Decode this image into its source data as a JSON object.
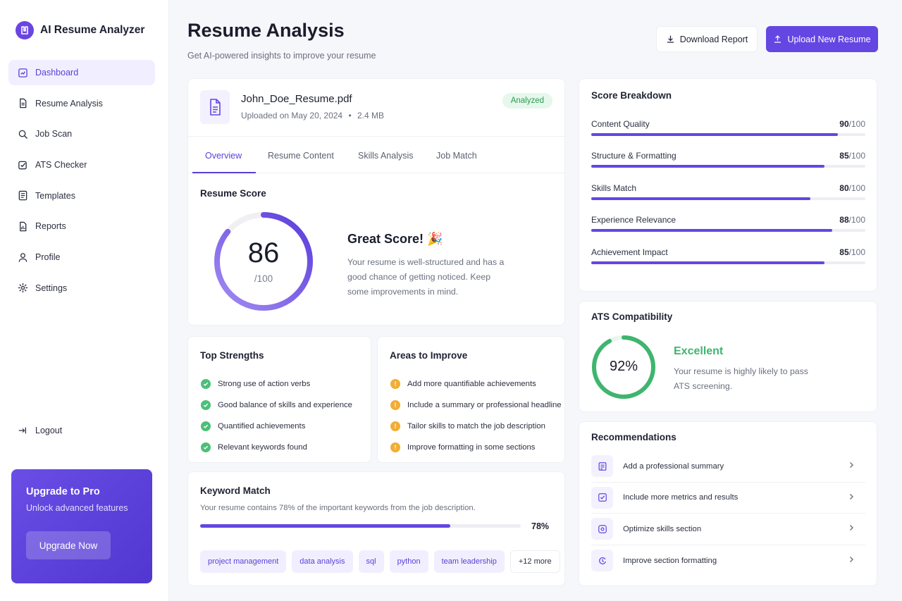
{
  "app": {
    "name": "AI Resume Analyzer"
  },
  "sidebar": {
    "items": [
      {
        "label": "Dashboard",
        "icon": "dashboard-icon"
      },
      {
        "label": "Resume Analysis",
        "icon": "document-icon"
      },
      {
        "label": "Job Scan",
        "icon": "search-icon"
      },
      {
        "label": "ATS Checker",
        "icon": "checklist-icon"
      },
      {
        "label": "Templates",
        "icon": "template-icon"
      },
      {
        "label": "Reports",
        "icon": "report-icon"
      },
      {
        "label": "Profile",
        "icon": "user-icon"
      },
      {
        "label": "Settings",
        "icon": "gear-icon"
      }
    ],
    "logout_label": "Logout",
    "upgrade": {
      "title": "Upgrade to Pro",
      "subtitle": "Unlock advanced features",
      "button": "Upgrade Now"
    }
  },
  "header": {
    "title": "Resume Analysis",
    "subtitle": "Get AI-powered insights to improve your resume",
    "download_label": "Download Report",
    "upload_label": "Upload New Resume"
  },
  "file": {
    "name": "John_Doe_Resume.pdf",
    "uploaded": "Uploaded on May 20, 2024",
    "separator": "•",
    "size": "2.4 MB",
    "status": "Analyzed"
  },
  "tabs": [
    "Overview",
    "Resume Content",
    "Skills Analysis",
    "Job Match"
  ],
  "score": {
    "label": "Resume Score",
    "value": "86",
    "max": "/100",
    "fraction": 0.86,
    "headline": "Great Score! 🎉",
    "description": "Your resume is well-structured and has a good chance of getting noticed. Keep some improvements in mind."
  },
  "strengths": {
    "title": "Top Strengths",
    "items": [
      "Strong use of action verbs",
      "Good balance of skills and experience",
      "Quantified achievements",
      "Relevant keywords found"
    ]
  },
  "improve": {
    "title": "Areas to Improve",
    "items": [
      "Add more quantifiable achievements",
      "Include a summary or professional headline",
      "Tailor skills to match the job description",
      "Improve formatting in some sections"
    ]
  },
  "keyword": {
    "title": "Keyword Match",
    "subtitle": "Your resume contains 78% of the important keywords from the job description.",
    "percent": "78%",
    "fraction": 0.78,
    "chips": [
      "project management",
      "data analysis",
      "sql",
      "python",
      "team leadership"
    ],
    "more": "+12 more"
  },
  "breakdown": {
    "title": "Score Breakdown",
    "rows": [
      {
        "name": "Content Quality",
        "score": "90",
        "max": "/100",
        "fraction": 0.9
      },
      {
        "name": "Structure & Formatting",
        "score": "85",
        "max": "/100",
        "fraction": 0.85
      },
      {
        "name": "Skills Match",
        "score": "80",
        "max": "/100",
        "fraction": 0.8
      },
      {
        "name": "Experience Relevance",
        "score": "88",
        "max": "/100",
        "fraction": 0.88
      },
      {
        "name": "Achievement Impact",
        "score": "85",
        "max": "/100",
        "fraction": 0.85
      }
    ]
  },
  "ats": {
    "title": "ATS Compatibility",
    "percent": "92%",
    "fraction": 0.92,
    "status": "Excellent",
    "description": "Your resume is highly likely to pass ATS screening."
  },
  "recommendations": {
    "title": "Recommendations",
    "items": [
      {
        "label": "Add a professional summary",
        "icon": "summary-icon"
      },
      {
        "label": "Include more metrics and results",
        "icon": "metrics-icon"
      },
      {
        "label": "Optimize skills section",
        "icon": "skills-icon"
      },
      {
        "label": "Improve section formatting",
        "icon": "format-icon"
      }
    ]
  },
  "colors": {
    "accent": "#6446e2",
    "success": "#3fb56f",
    "warning": "#f2ad33"
  }
}
